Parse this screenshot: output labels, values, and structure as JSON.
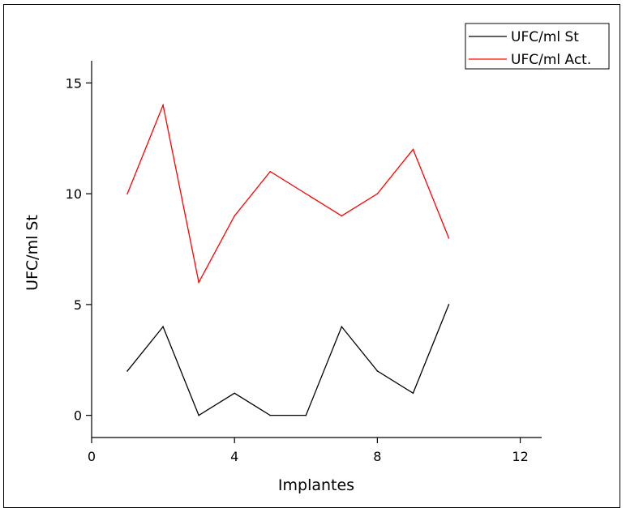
{
  "chart_data": {
    "type": "line",
    "title": "",
    "xlabel": "Implantes",
    "ylabel": "UFC/ml St",
    "xlim": [
      0,
      12.6
    ],
    "ylim": [
      -1,
      16
    ],
    "xticks": [
      0,
      4,
      8,
      12
    ],
    "yticks": [
      0,
      5,
      10,
      15
    ],
    "grid": false,
    "legend_position": "top-right",
    "series": [
      {
        "name": "UFC/ml St",
        "color": "#000000",
        "x": [
          1,
          2,
          3,
          4,
          5,
          6,
          7,
          8,
          9,
          10
        ],
        "values": [
          2,
          4,
          0,
          1,
          0,
          0,
          4,
          2,
          1,
          5
        ]
      },
      {
        "name": "UFC/ml Act.",
        "color": "#ff0000",
        "x": [
          1,
          2,
          3,
          4,
          5,
          6,
          7,
          8,
          9,
          10
        ],
        "values": [
          10,
          14,
          6,
          9,
          11,
          10,
          9,
          10,
          12,
          8
        ]
      }
    ]
  }
}
